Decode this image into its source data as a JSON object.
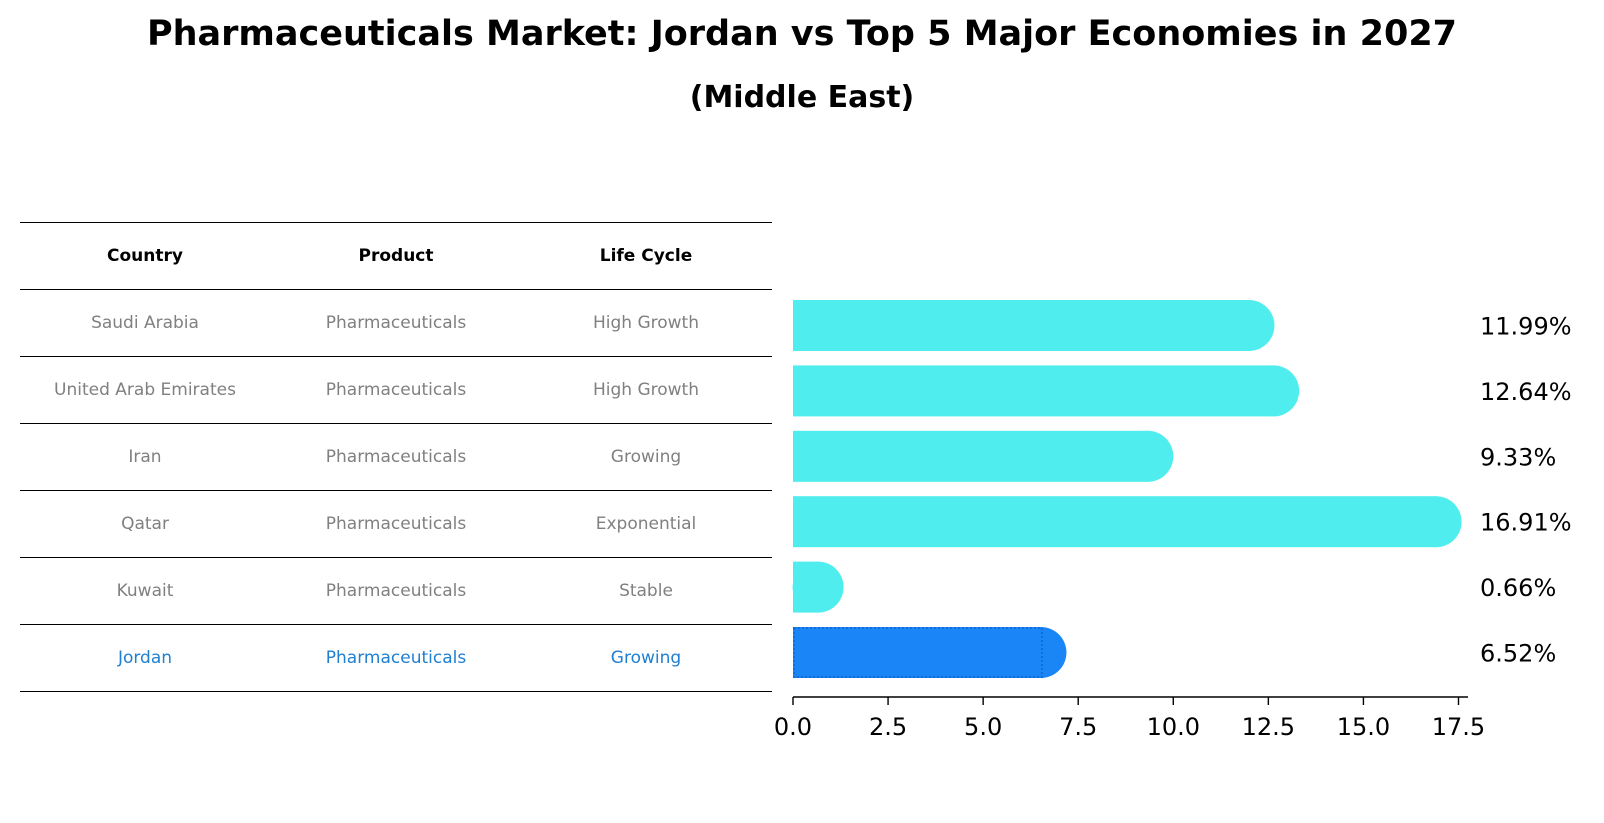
{
  "title": "Pharmaceuticals Market: Jordan vs Top 5 Major Economies in 2027",
  "subtitle": "(Middle East)",
  "table": {
    "headers": [
      "Country",
      "Product",
      "Life Cycle"
    ],
    "rows": [
      [
        "Saudi Arabia",
        "Pharmaceuticals",
        "High Growth"
      ],
      [
        "United Arab Emirates",
        "Pharmaceuticals",
        "High Growth"
      ],
      [
        "Iran",
        "Pharmaceuticals",
        "Growing"
      ],
      [
        "Qatar",
        "Pharmaceuticals",
        "Exponential"
      ],
      [
        "Kuwait",
        "Pharmaceuticals",
        "Stable"
      ],
      [
        "Jordan",
        "Pharmaceuticals",
        "Growing"
      ]
    ],
    "highlight_row": 5
  },
  "colors": {
    "bar": "#4feded",
    "highlight_bar": "#1a85f7",
    "highlight_text": "#1f7fd1",
    "muted_text": "#808080"
  },
  "chart_data": {
    "type": "bar",
    "orientation": "horizontal",
    "categories": [
      "Saudi Arabia",
      "United Arab Emirates",
      "Iran",
      "Qatar",
      "Kuwait",
      "Jordan"
    ],
    "values": [
      11.99,
      12.64,
      9.33,
      16.91,
      0.66,
      6.52
    ],
    "value_labels": [
      "11.99%",
      "12.64%",
      "9.33%",
      "16.91%",
      "0.66%",
      "6.52%"
    ],
    "highlight_index": 5,
    "xlim": [
      0,
      17.75
    ],
    "xticks": [
      0.0,
      2.5,
      5.0,
      7.5,
      10.0,
      12.5,
      15.0,
      17.5
    ],
    "xtick_labels": [
      "0.0",
      "2.5",
      "5.0",
      "7.5",
      "10.0",
      "12.5",
      "15.0",
      "17.5"
    ],
    "xlabel": "",
    "ylabel": ""
  }
}
